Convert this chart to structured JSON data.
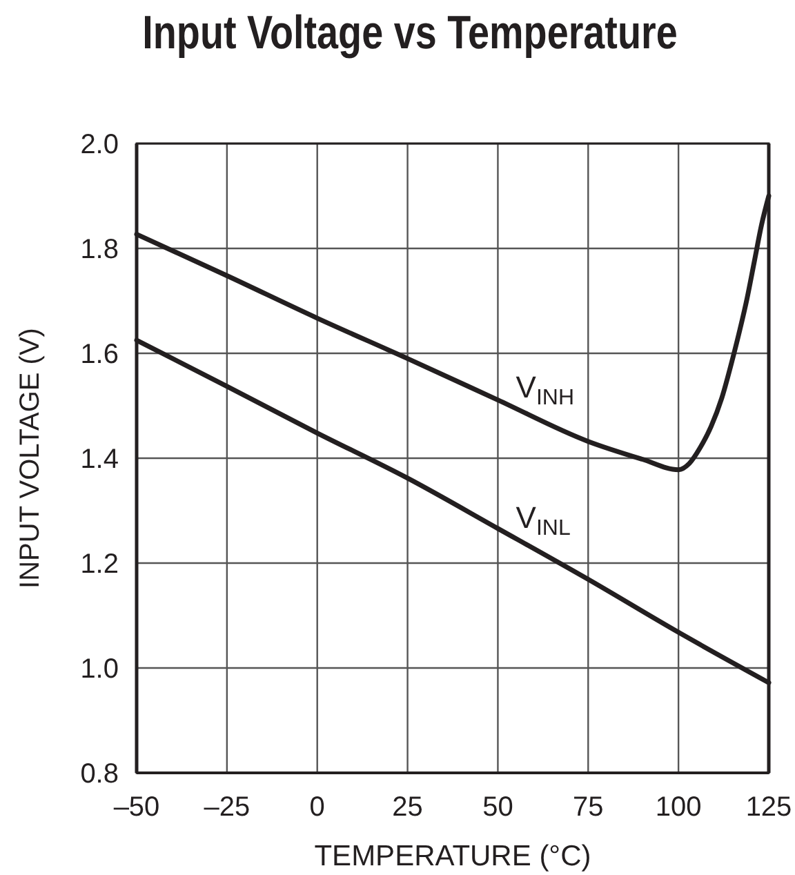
{
  "chart_data": {
    "type": "line",
    "title": "Input Voltage vs Temperature",
    "xlabel": "TEMPERATURE (°C)",
    "ylabel": "INPUT VOLTAGE (V)",
    "xlim": [
      -50,
      125
    ],
    "xticks": [
      {
        "value": -50,
        "label": "–50"
      },
      {
        "value": -25,
        "label": "–25"
      },
      0,
      25,
      50,
      75,
      100,
      125
    ],
    "ylim": [
      0.8,
      2.0
    ],
    "yticks": [
      0.8,
      {
        "value": 1,
        "label": "1.0"
      },
      1.2,
      1.4,
      1.6,
      1.8,
      {
        "value": 2,
        "label": "2.0"
      }
    ],
    "grid": true,
    "line_style": "solid",
    "series": [
      {
        "name": "V$_{INH}$",
        "color": "#231f20",
        "x": [
          -50,
          -25,
          0,
          25,
          50,
          75,
          90,
          100,
          103,
          106,
          109,
          112,
          115,
          117,
          119,
          121,
          123,
          125
        ],
        "values": [
          1.827,
          1.748,
          1.667,
          1.59,
          1.511,
          1.432,
          1.398,
          1.378,
          1.39,
          1.42,
          1.46,
          1.515,
          1.59,
          1.645,
          1.705,
          1.775,
          1.845,
          1.9
        ]
      },
      {
        "name": "V$_{INL}$",
        "color": "#231f20",
        "x": [
          -50,
          -25,
          0,
          25,
          50,
          75,
          100,
          125
        ],
        "values": [
          1.625,
          1.537,
          1.448,
          1.362,
          1.266,
          1.169,
          1.068,
          0.972
        ]
      }
    ]
  }
}
